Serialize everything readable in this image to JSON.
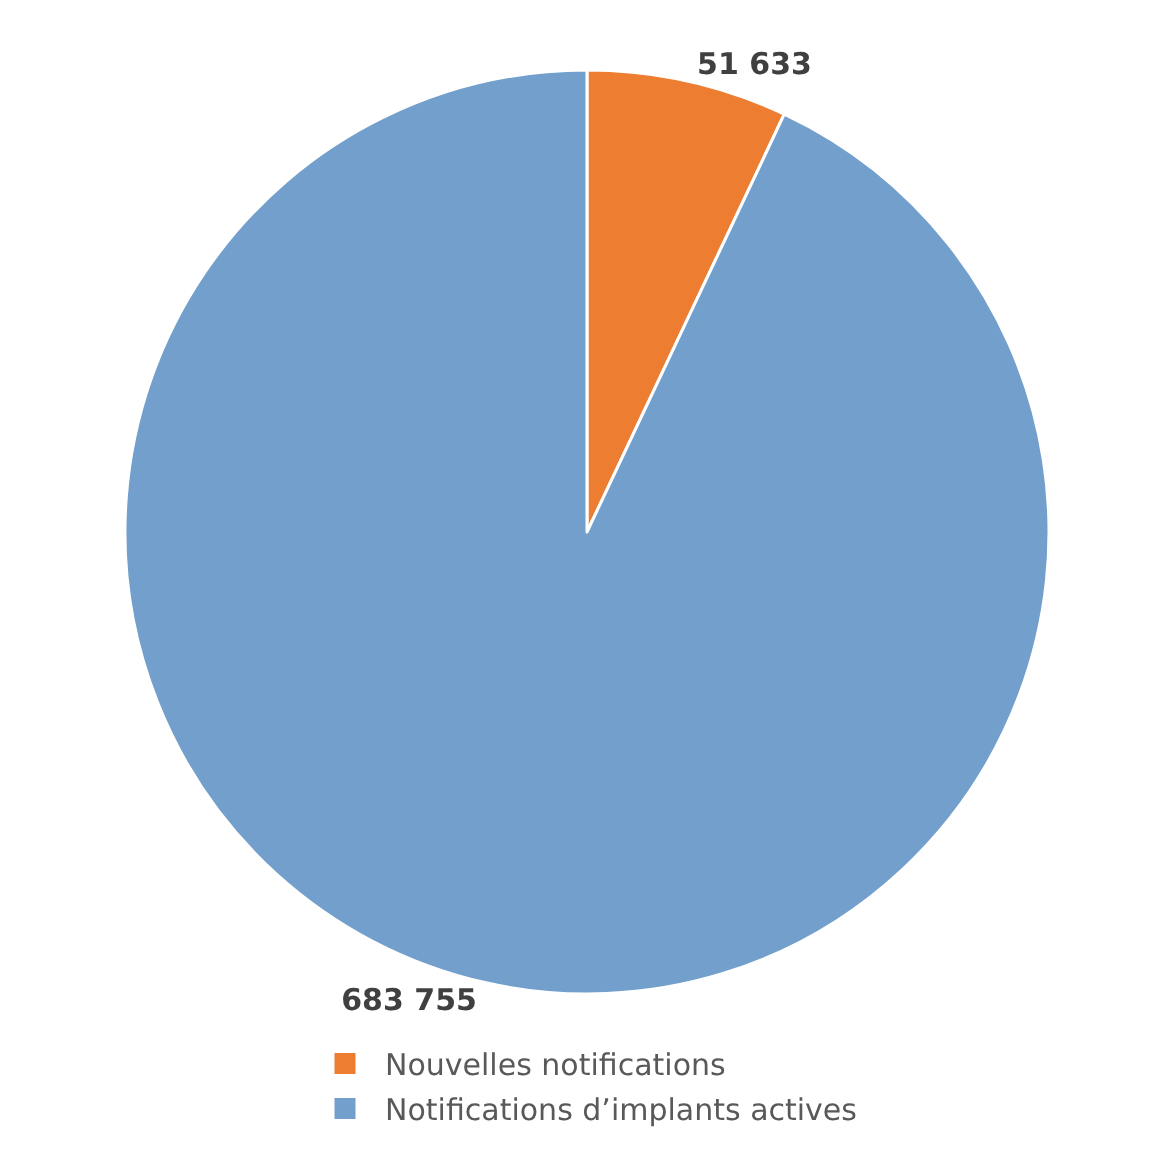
{
  "chart_data": {
    "type": "pie",
    "categories": [
      "Nouvelles notifications",
      "Notifications d’implants actives"
    ],
    "values": [
      51633,
      683755
    ],
    "colors": [
      "#ed7d31",
      "#729fcb"
    ],
    "value_labels": [
      "51 633",
      "683 755"
    ],
    "legend": "bottom"
  }
}
